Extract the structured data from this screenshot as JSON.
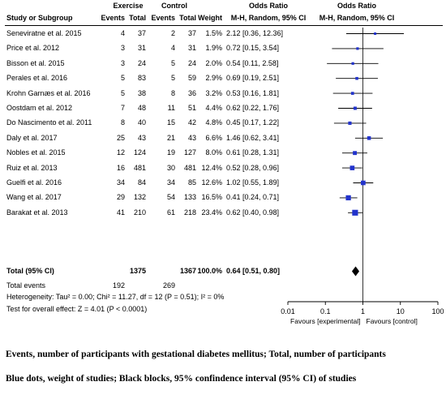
{
  "headers": {
    "group1": "Exercise",
    "group2": "Control",
    "study": "Study or Subgroup",
    "events1": "Events",
    "total1": "Total",
    "events2": "Events",
    "total2": "Total",
    "weight": "Weight",
    "or_title": "Odds Ratio",
    "or_method": "M-H, Random, 95% CI",
    "plot_title": "Odds Ratio",
    "plot_method": "M-H, Random, 95% CI"
  },
  "studies": [
    {
      "name": "Seneviratne et al. 2015",
      "e1": "4",
      "t1": "37",
      "e2": "2",
      "t2": "37",
      "weight": "1.5%",
      "ci_text": "2.12 [0.36, 12.36]"
    },
    {
      "name": "Price et al. 2012",
      "e1": "3",
      "t1": "31",
      "e2": "4",
      "t2": "31",
      "weight": "1.9%",
      "ci_text": "0.72 [0.15, 3.54]"
    },
    {
      "name": "Bisson et al. 2015",
      "e1": "3",
      "t1": "24",
      "e2": "5",
      "t2": "24",
      "weight": "2.0%",
      "ci_text": "0.54 [0.11, 2.58]"
    },
    {
      "name": "Perales et al. 2016",
      "e1": "5",
      "t1": "83",
      "e2": "5",
      "t2": "59",
      "weight": "2.9%",
      "ci_text": "0.69 [0.19, 2.51]"
    },
    {
      "name": "Krohn Garnæs et al. 2016",
      "e1": "5",
      "t1": "38",
      "e2": "8",
      "t2": "36",
      "weight": "3.2%",
      "ci_text": "0.53 [0.16, 1.81]"
    },
    {
      "name": "Oostdam et al. 2012",
      "e1": "7",
      "t1": "48",
      "e2": "11",
      "t2": "51",
      "weight": "4.4%",
      "ci_text": "0.62 [0.22, 1.76]"
    },
    {
      "name": "Do Nascimento et al. 2011",
      "e1": "8",
      "t1": "40",
      "e2": "15",
      "t2": "42",
      "weight": "4.8%",
      "ci_text": "0.45 [0.17, 1.22]"
    },
    {
      "name": "Daly et al. 2017",
      "e1": "25",
      "t1": "43",
      "e2": "21",
      "t2": "43",
      "weight": "6.6%",
      "ci_text": "1.46 [0.62, 3.41]"
    },
    {
      "name": "Nobles et al. 2015",
      "e1": "12",
      "t1": "124",
      "e2": "19",
      "t2": "127",
      "weight": "8.0%",
      "ci_text": "0.61 [0.28, 1.31]"
    },
    {
      "name": "Ruiz et al. 2013",
      "e1": "16",
      "t1": "481",
      "e2": "30",
      "t2": "481",
      "weight": "12.4%",
      "ci_text": "0.52 [0.28, 0.96]"
    },
    {
      "name": "Guelfi et al. 2016",
      "e1": "34",
      "t1": "84",
      "e2": "34",
      "t2": "85",
      "weight": "12.6%",
      "ci_text": "1.02 [0.55, 1.89]"
    },
    {
      "name": "Wang et al. 2017",
      "e1": "29",
      "t1": "132",
      "e2": "54",
      "t2": "133",
      "weight": "16.5%",
      "ci_text": "0.41 [0.24, 0.71]"
    },
    {
      "name": "Barakat et al. 2013",
      "e1": "41",
      "t1": "210",
      "e2": "61",
      "t2": "218",
      "weight": "23.4%",
      "ci_text": "0.62 [0.40, 0.98]"
    }
  ],
  "total": {
    "label": "Total (95% CI)",
    "t1": "1375",
    "t2": "1367",
    "weight": "100.0%",
    "ci_text": "0.64 [0.51, 0.80]",
    "events_label": "Total events",
    "events1": "192",
    "events2": "269"
  },
  "heterogeneity": "Heterogeneity: Tau² = 0.00; Chi² = 11.27, df = 12 (P = 0.51); I² = 0%",
  "overall_effect": "Test for overall effect: Z = 4.01 (P < 0.0001)",
  "captions": [
    "Events, number of participants with gestational diabetes mellitus; Total, number of participants",
    "Blue dots, weight of studies; Black blocks, 95% confindence interval (95% CI) of studies"
  ],
  "chart_data": {
    "type": "scatter",
    "title": "Odds Ratio",
    "subtitle": "M-H, Random, 95% CI",
    "x_scale": "log",
    "xlim": [
      0.01,
      100
    ],
    "x_ticks": [
      0.01,
      0.1,
      1,
      10,
      100
    ],
    "x_tick_labels": [
      "0.01",
      "0.1",
      "1",
      "10",
      "100"
    ],
    "favours_left": "Favours [experimental]",
    "favours_right": "Favours [control]",
    "reference_line": 1,
    "studies": [
      {
        "or": 2.12,
        "lo": 0.36,
        "hi": 12.36,
        "weight": 1.5
      },
      {
        "or": 0.72,
        "lo": 0.15,
        "hi": 3.54,
        "weight": 1.9
      },
      {
        "or": 0.54,
        "lo": 0.11,
        "hi": 2.58,
        "weight": 2.0
      },
      {
        "or": 0.69,
        "lo": 0.19,
        "hi": 2.51,
        "weight": 2.9
      },
      {
        "or": 0.53,
        "lo": 0.16,
        "hi": 1.81,
        "weight": 3.2
      },
      {
        "or": 0.62,
        "lo": 0.22,
        "hi": 1.76,
        "weight": 4.4
      },
      {
        "or": 0.45,
        "lo": 0.17,
        "hi": 1.22,
        "weight": 4.8
      },
      {
        "or": 1.46,
        "lo": 0.62,
        "hi": 3.41,
        "weight": 6.6
      },
      {
        "or": 0.61,
        "lo": 0.28,
        "hi": 1.31,
        "weight": 8.0
      },
      {
        "or": 0.52,
        "lo": 0.28,
        "hi": 0.96,
        "weight": 12.4
      },
      {
        "or": 1.02,
        "lo": 0.55,
        "hi": 1.89,
        "weight": 12.6
      },
      {
        "or": 0.41,
        "lo": 0.24,
        "hi": 0.71,
        "weight": 16.5
      },
      {
        "or": 0.62,
        "lo": 0.4,
        "hi": 0.98,
        "weight": 23.4
      }
    ],
    "pooled": {
      "or": 0.64,
      "lo": 0.51,
      "hi": 0.8
    },
    "colors": {
      "point": "#2233cc",
      "ci": "#000000",
      "pooled": "#000000"
    }
  }
}
